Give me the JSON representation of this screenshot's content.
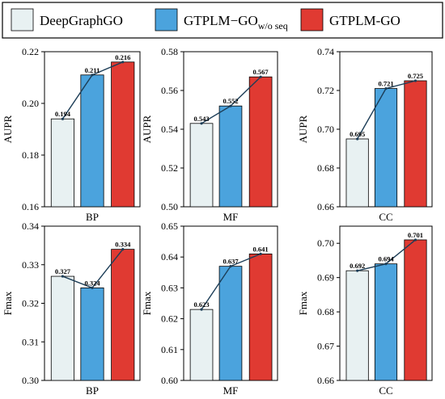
{
  "legend": [
    {
      "name": "DeepGraphGO",
      "sub": "",
      "color": "#e8f1f2"
    },
    {
      "name": "GTPLM−GO",
      "sub": "w/o seq",
      "color": "#4ba3dd"
    },
    {
      "name": "GTPLM-GO",
      "sub": "",
      "color": "#e03a32"
    }
  ],
  "chart_data": [
    {
      "type": "bar",
      "categories": [
        "DeepGraphGO",
        "GTPLM−GO w/o seq",
        "GTPLM-GO"
      ],
      "values": [
        0.194,
        0.211,
        0.216
      ],
      "value_labels": [
        "0.194",
        "0.211",
        "0.216"
      ],
      "xlabel": "BP",
      "ylabel": "AUPR",
      "ylim": [
        0.16,
        0.22
      ],
      "yticks": [
        "0.16",
        "0.18",
        "0.20",
        "0.22"
      ],
      "ytick_values": [
        0.16,
        0.18,
        0.2,
        0.22
      ],
      "trend_line": true
    },
    {
      "type": "bar",
      "categories": [
        "DeepGraphGO",
        "GTPLM−GO w/o seq",
        "GTPLM-GO"
      ],
      "values": [
        0.543,
        0.552,
        0.567
      ],
      "value_labels": [
        "0.543",
        "0.552",
        "0.567"
      ],
      "xlabel": "MF",
      "ylabel": "AUPR",
      "ylim": [
        0.5,
        0.58
      ],
      "yticks": [
        "0.50",
        "0.52",
        "0.54",
        "0.56",
        "0.58"
      ],
      "ytick_values": [
        0.5,
        0.52,
        0.54,
        0.56,
        0.58
      ],
      "trend_line": true
    },
    {
      "type": "bar",
      "categories": [
        "DeepGraphGO",
        "GTPLM−GO w/o seq",
        "GTPLM-GO"
      ],
      "values": [
        0.695,
        0.721,
        0.725
      ],
      "value_labels": [
        "0.695",
        "0.721",
        "0.725"
      ],
      "xlabel": "CC",
      "ylabel": "AUPR",
      "ylim": [
        0.66,
        0.74
      ],
      "yticks": [
        "0.66",
        "0.68",
        "0.70",
        "0.72",
        "0.74"
      ],
      "ytick_values": [
        0.66,
        0.68,
        0.7,
        0.72,
        0.74
      ],
      "trend_line": true
    },
    {
      "type": "bar",
      "categories": [
        "DeepGraphGO",
        "GTPLM−GO w/o seq",
        "GTPLM-GO"
      ],
      "values": [
        0.327,
        0.324,
        0.334
      ],
      "value_labels": [
        "0.327",
        "0.324",
        "0.334"
      ],
      "xlabel": "BP",
      "ylabel": "Fmax",
      "ylim": [
        0.3,
        0.34
      ],
      "yticks": [
        "0.30",
        "0.31",
        "0.32",
        "0.33",
        "0.34"
      ],
      "ytick_values": [
        0.3,
        0.31,
        0.32,
        0.33,
        0.34
      ],
      "trend_line": true
    },
    {
      "type": "bar",
      "categories": [
        "DeepGraphGO",
        "GTPLM−GO w/o seq",
        "GTPLM-GO"
      ],
      "values": [
        0.623,
        0.637,
        0.641
      ],
      "value_labels": [
        "0.623",
        "0.637",
        "0.641"
      ],
      "xlabel": "MF",
      "ylabel": "Fmax",
      "ylim": [
        0.6,
        0.65
      ],
      "yticks": [
        "0.60",
        "0.61",
        "0.62",
        "0.63",
        "0.64",
        "0.65"
      ],
      "ytick_values": [
        0.6,
        0.61,
        0.62,
        0.63,
        0.64,
        0.65
      ],
      "trend_line": true
    },
    {
      "type": "bar",
      "categories": [
        "DeepGraphGO",
        "GTPLM−GO w/o seq",
        "GTPLM-GO"
      ],
      "values": [
        0.692,
        0.694,
        0.701
      ],
      "value_labels": [
        "0.692",
        "0.694",
        "0.701"
      ],
      "xlabel": "CC",
      "ylabel": "Fmax",
      "ylim": [
        0.66,
        0.705
      ],
      "yticks": [
        "0.66",
        "0.67",
        "0.68",
        "0.69",
        "0.70"
      ],
      "ytick_values": [
        0.66,
        0.67,
        0.68,
        0.69,
        0.7
      ],
      "trend_line": true
    }
  ]
}
